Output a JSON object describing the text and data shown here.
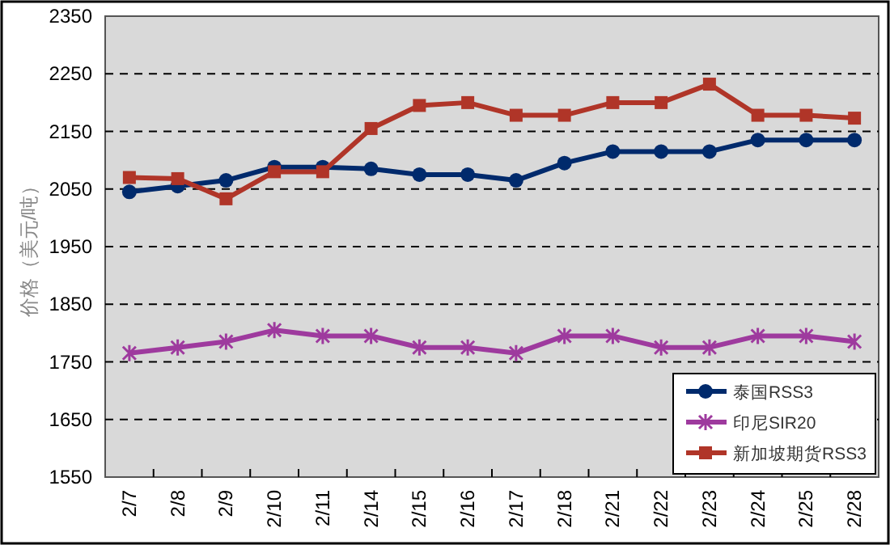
{
  "chart_data": {
    "type": "line",
    "ylabel": "价格（美元/吨）",
    "categories": [
      "2/7",
      "2/8",
      "2/9",
      "2/10",
      "2/11",
      "2/14",
      "2/15",
      "2/16",
      "2/17",
      "2/18",
      "2/21",
      "2/22",
      "2/23",
      "2/24",
      "2/25",
      "2/28"
    ],
    "series": [
      {
        "name": "泰国RSS3",
        "color": "#002a6c",
        "marker": "circle",
        "values": [
          2045,
          2055,
          2065,
          2088,
          2088,
          2085,
          2075,
          2075,
          2065,
          2095,
          2115,
          2115,
          2115,
          2135,
          2135,
          2135
        ]
      },
      {
        "name": "印尼SIR20",
        "color": "#9e3a9e",
        "marker": "cross",
        "values": [
          1765,
          1775,
          1785,
          1805,
          1795,
          1795,
          1775,
          1775,
          1765,
          1795,
          1795,
          1775,
          1775,
          1795,
          1795,
          1785
        ]
      },
      {
        "name": "新加坡期货RSS3",
        "color": "#b03528",
        "marker": "square",
        "values": [
          2070,
          2068,
          2033,
          2080,
          2080,
          2155,
          2195,
          2200,
          2178,
          2178,
          2200,
          2200,
          2232,
          2178,
          2178,
          2173
        ]
      }
    ],
    "ylim": [
      1550,
      2350
    ],
    "yticks": [
      1550,
      1650,
      1750,
      1850,
      1950,
      2050,
      2150,
      2250,
      2350
    ],
    "grid": "y",
    "legend": "bottom right",
    "line_style": "solid"
  }
}
